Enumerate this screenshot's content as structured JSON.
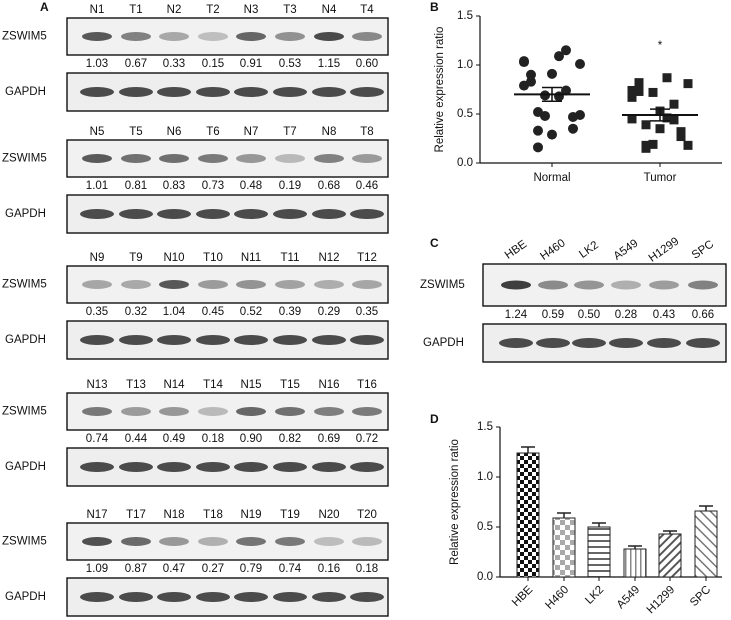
{
  "panel_labels": [
    "A",
    "B",
    "C",
    "D"
  ],
  "row_labels": {
    "target": "ZSWIM5",
    "control": "GAPDH"
  },
  "blots": [
    {
      "lanes": [
        "N1",
        "T1",
        "N2",
        "T2",
        "N3",
        "T3",
        "N4",
        "T4"
      ],
      "values": [
        1.03,
        0.67,
        0.33,
        0.15,
        0.91,
        0.53,
        1.15,
        0.6
      ],
      "value_labels": [
        "1.03",
        "0.67",
        "0.33",
        "0.15",
        "0.91",
        "0.53",
        "1.15",
        "0.60"
      ]
    },
    {
      "lanes": [
        "N5",
        "T5",
        "N6",
        "T6",
        "N7",
        "T7",
        "N8",
        "T8"
      ],
      "values": [
        1.01,
        0.81,
        0.83,
        0.73,
        0.48,
        0.19,
        0.68,
        0.46
      ],
      "value_labels": [
        "1.01",
        "0.81",
        "0.83",
        "0.73",
        "0.48",
        "0.19",
        "0.68",
        "0.46"
      ]
    },
    {
      "lanes": [
        "N9",
        "T9",
        "N10",
        "T10",
        "N11",
        "T11",
        "N12",
        "T12"
      ],
      "values": [
        0.35,
        0.32,
        1.04,
        0.45,
        0.52,
        0.39,
        0.29,
        0.35
      ],
      "value_labels": [
        "0.35",
        "0.32",
        "1.04",
        "0.45",
        "0.52",
        "0.39",
        "0.29",
        "0.35"
      ]
    },
    {
      "lanes": [
        "N13",
        "T13",
        "N14",
        "T14",
        "N15",
        "T15",
        "N16",
        "T16"
      ],
      "values": [
        0.74,
        0.44,
        0.49,
        0.18,
        0.9,
        0.82,
        0.69,
        0.72
      ],
      "value_labels": [
        "0.74",
        "0.44",
        "0.49",
        "0.18",
        "0.90",
        "0.82",
        "0.69",
        "0.72"
      ]
    },
    {
      "lanes": [
        "N17",
        "T17",
        "N18",
        "T18",
        "N19",
        "T19",
        "N20",
        "T20"
      ],
      "values": [
        1.09,
        0.87,
        0.47,
        0.27,
        0.79,
        0.74,
        0.16,
        0.18
      ],
      "value_labels": [
        "1.09",
        "0.87",
        "0.47",
        "0.27",
        "0.79",
        "0.74",
        "0.16",
        "0.18"
      ]
    }
  ],
  "cell_blot": {
    "lanes": [
      "HBE",
      "H460",
      "LK2",
      "A549",
      "H1299",
      "SPC"
    ],
    "values": [
      1.24,
      0.59,
      0.5,
      0.28,
      0.43,
      0.66
    ],
    "value_labels": [
      "1.24",
      "0.59",
      "0.50",
      "0.28",
      "0.43",
      "0.66"
    ]
  },
  "chart_data": [
    {
      "type": "strip",
      "ylabel": "Relative expression ratio",
      "categories": [
        "Normal",
        "Tumor"
      ],
      "values": [
        [
          1.03,
          0.33,
          0.91,
          1.15,
          1.01,
          0.83,
          0.48,
          0.68,
          0.35,
          1.04,
          0.52,
          0.29,
          0.74,
          0.49,
          0.9,
          0.69,
          1.09,
          0.47,
          0.79,
          0.16
        ],
        [
          0.67,
          0.15,
          0.53,
          0.6,
          0.81,
          0.73,
          0.19,
          0.46,
          0.32,
          0.45,
          0.39,
          0.35,
          0.44,
          0.18,
          0.82,
          0.72,
          0.87,
          0.27,
          0.74,
          0.18
        ]
      ],
      "means": [
        0.7,
        0.49
      ],
      "errors": [
        0.07,
        0.06
      ],
      "markers": [
        "circle",
        "square"
      ],
      "color": "#222222",
      "annotation": "*",
      "ylim": [
        0,
        1.5
      ],
      "yticks": [
        {
          "value": 0,
          "label": "0.0"
        },
        0.5,
        {
          "value": 1,
          "label": "1.0"
        },
        1.5
      ]
    },
    {
      "type": "bar",
      "ylabel": "Relative expression ratio",
      "categories": [
        "HBE",
        "H460",
        "LK2",
        "A549",
        "H1299",
        "SPC"
      ],
      "values": [
        1.24,
        0.59,
        0.5,
        0.28,
        0.43,
        0.66
      ],
      "errors": [
        0.06,
        0.05,
        0.04,
        0.03,
        0.03,
        0.05
      ],
      "color": "#222222",
      "ylim": [
        0,
        1.5
      ],
      "yticks": [
        {
          "value": 0,
          "label": "0.0"
        },
        0.5,
        {
          "value": 1,
          "label": "1.0"
        },
        1.5
      ]
    }
  ]
}
